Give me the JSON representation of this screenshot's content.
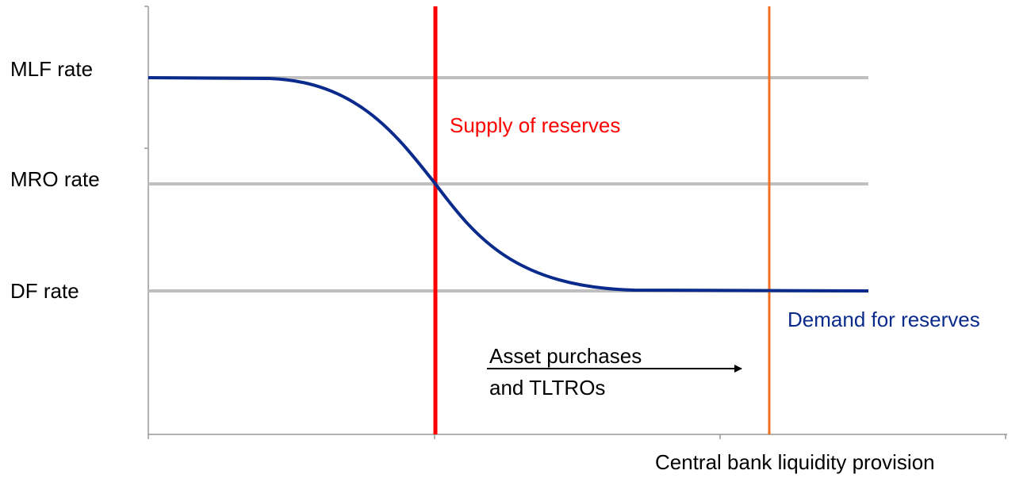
{
  "rate_labels": [
    "MLF rate",
    "MRO rate",
    "DF rate"
  ],
  "supply_label": "Supply of reserves",
  "demand_label": "Demand for reserves",
  "annotation": [
    "Asset purchases",
    "and TLTROs"
  ],
  "x_axis_label": "Central bank liquidity provision"
}
